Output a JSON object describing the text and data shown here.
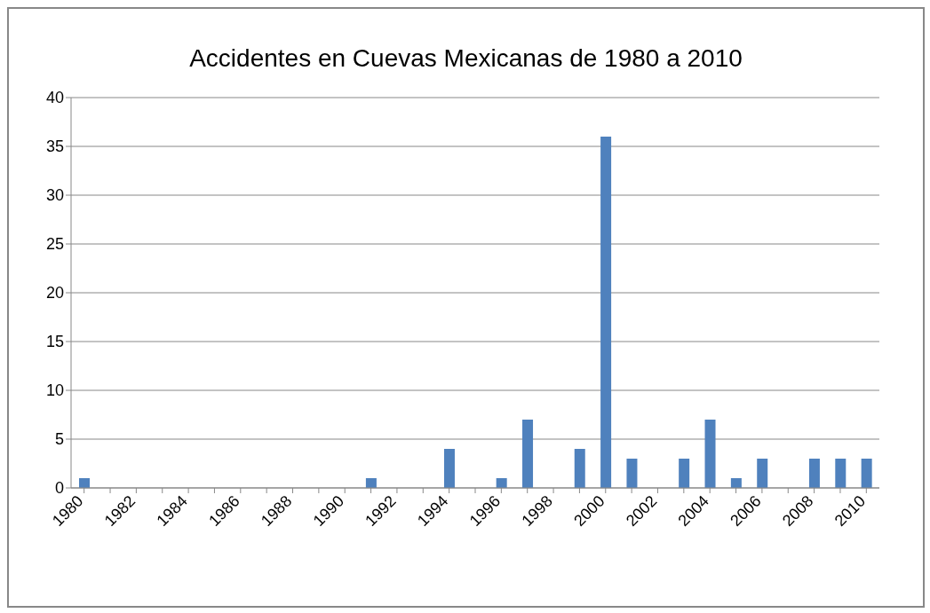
{
  "chart_data": {
    "type": "bar",
    "title": "Accidentes en Cuevas Mexicanas de 1980 a 2010",
    "categories": [
      "1980",
      null,
      "1982",
      null,
      "1984",
      null,
      "1986",
      null,
      "1988",
      null,
      "1990",
      null,
      "1992",
      null,
      "1994",
      null,
      "1996",
      null,
      "1998",
      null,
      "2000",
      null,
      "2002",
      null,
      "2004",
      null,
      "2006",
      null,
      "2008",
      null,
      "2010"
    ],
    "values": [
      1,
      0,
      0,
      0,
      0,
      0,
      0,
      0,
      0,
      0,
      0,
      1,
      0,
      0,
      4,
      0,
      1,
      7,
      0,
      4,
      36,
      3,
      0,
      3,
      7,
      1,
      3,
      0,
      3,
      3,
      3
    ],
    "color": "#4f81bd",
    "ylim": [
      0,
      40
    ],
    "yticks": [
      0,
      5,
      10,
      15,
      20,
      25,
      30,
      35,
      40
    ],
    "grid": "y"
  }
}
